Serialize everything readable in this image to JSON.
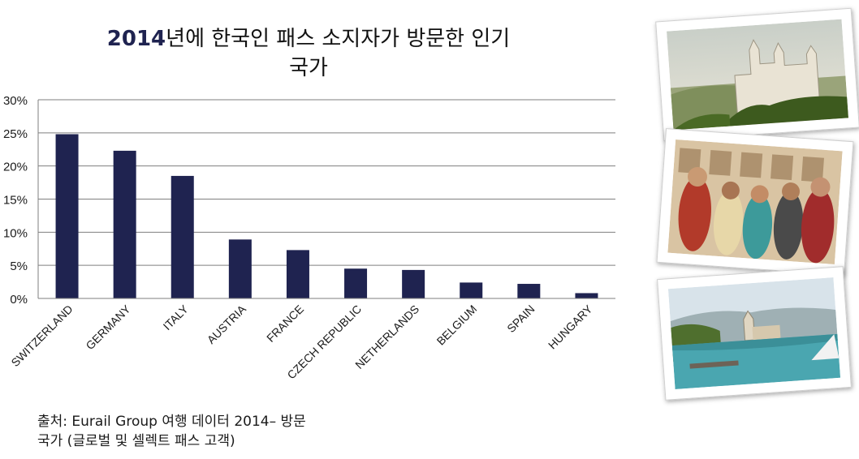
{
  "title_year": "2014",
  "title_rest": "년에 한국인 패스 소지자가 방문한 인기",
  "title_line2": "국가",
  "source_line1": "출처: Eurail Group 여행 데이터 2014– 방문",
  "source_line2": "국가 (글로벌 및 셀렉트 패스 고객)",
  "colors": {
    "bar": "#1f2350",
    "grid": "#7f7f7f"
  },
  "chart_data": {
    "type": "bar",
    "categories": [
      "SWITZERLAND",
      "GERMANY",
      "ITALY",
      "AUSTRIA",
      "FRANCE",
      "CZECH REPUBLIC",
      "NETHERLANDS",
      "BELGIUM",
      "SPAIN",
      "HUNGARY"
    ],
    "values": [
      24.8,
      22.3,
      18.5,
      8.9,
      7.3,
      4.5,
      4.3,
      2.4,
      2.2,
      0.8
    ],
    "ylim": [
      0,
      30
    ],
    "yticks": [
      "0%",
      "5%",
      "10%",
      "15%",
      "20%",
      "25%",
      "30%"
    ],
    "grid": true
  }
}
